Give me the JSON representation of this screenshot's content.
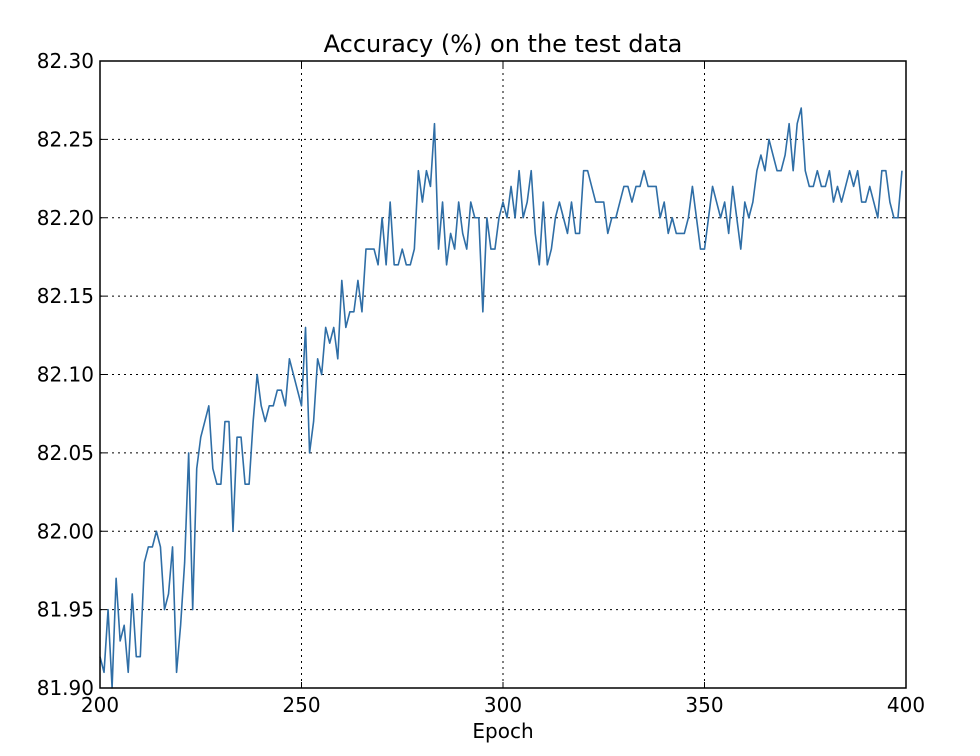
{
  "chart_data": {
    "type": "line",
    "title": "Accuracy (%) on the test data",
    "xlabel": "Epoch",
    "ylabel": "",
    "xlim": [
      200,
      400
    ],
    "ylim": [
      81.9,
      82.3
    ],
    "xticks": [
      200,
      250,
      300,
      350,
      400
    ],
    "yticks": [
      81.9,
      81.95,
      82.0,
      82.05,
      82.1,
      82.15,
      82.2,
      82.25,
      82.3
    ],
    "xtick_labels": [
      "200",
      "250",
      "300",
      "350",
      "400"
    ],
    "ytick_labels": [
      "81.90",
      "81.95",
      "82.00",
      "82.05",
      "82.10",
      "82.15",
      "82.20",
      "82.25",
      "82.30"
    ],
    "grid": true,
    "line_color": "#2f6ea6",
    "x_start": 200,
    "x_step": 1,
    "series": [
      {
        "values": [
          81.92,
          81.91,
          81.95,
          81.9,
          81.97,
          81.93,
          81.94,
          81.91,
          81.96,
          81.92,
          81.92,
          81.98,
          81.99,
          81.99,
          82.0,
          81.99,
          81.95,
          81.96,
          81.99,
          81.91,
          81.94,
          81.98,
          82.05,
          81.95,
          82.04,
          82.06,
          82.07,
          82.08,
          82.04,
          82.03,
          82.03,
          82.07,
          82.07,
          82.0,
          82.06,
          82.06,
          82.03,
          82.03,
          82.07,
          82.1,
          82.08,
          82.07,
          82.08,
          82.08,
          82.09,
          82.09,
          82.08,
          82.11,
          82.1,
          82.09,
          82.08,
          82.13,
          82.05,
          82.07,
          82.11,
          82.1,
          82.13,
          82.12,
          82.13,
          82.11,
          82.16,
          82.13,
          82.14,
          82.14,
          82.16,
          82.14,
          82.18,
          82.18,
          82.18,
          82.17,
          82.2,
          82.17,
          82.21,
          82.17,
          82.17,
          82.18,
          82.17,
          82.17,
          82.18,
          82.23,
          82.21,
          82.23,
          82.22,
          82.26,
          82.18,
          82.21,
          82.17,
          82.19,
          82.18,
          82.21,
          82.19,
          82.18,
          82.21,
          82.2,
          82.2,
          82.14,
          82.2,
          82.18,
          82.18,
          82.2,
          82.21,
          82.2,
          82.22,
          82.2,
          82.23,
          82.2,
          82.21,
          82.23,
          82.19,
          82.17,
          82.21,
          82.17,
          82.18,
          82.2,
          82.21,
          82.2,
          82.19,
          82.21,
          82.19,
          82.19,
          82.23,
          82.23,
          82.22,
          82.21,
          82.21,
          82.21,
          82.19,
          82.2,
          82.2,
          82.21,
          82.22,
          82.22,
          82.21,
          82.22,
          82.22,
          82.23,
          82.22,
          82.22,
          82.22,
          82.2,
          82.21,
          82.19,
          82.2,
          82.19,
          82.19,
          82.19,
          82.2,
          82.22,
          82.2,
          82.18,
          82.18,
          82.2,
          82.22,
          82.21,
          82.2,
          82.21,
          82.19,
          82.22,
          82.2,
          82.18,
          82.21,
          82.2,
          82.21,
          82.23,
          82.24,
          82.23,
          82.25,
          82.24,
          82.23,
          82.23,
          82.24,
          82.26,
          82.23,
          82.26,
          82.27,
          82.23,
          82.22,
          82.22,
          82.23,
          82.22,
          82.22,
          82.23,
          82.21,
          82.22,
          82.21,
          82.22,
          82.23,
          82.22,
          82.23,
          82.21,
          82.21,
          82.22,
          82.21,
          82.2,
          82.23,
          82.23,
          82.21,
          82.2,
          82.2,
          82.23
        ]
      }
    ]
  }
}
